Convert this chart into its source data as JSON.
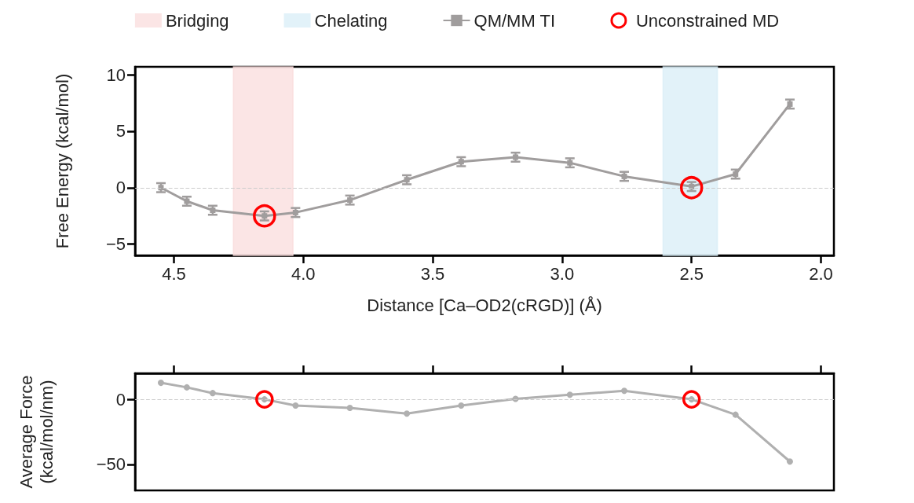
{
  "chart_data": [
    {
      "type": "line",
      "xlabel": "Distance [Ca–OD2(cRGD)] (Å)",
      "ylabel": "Free Energy (kcal/mol)",
      "xlim": [
        4.65,
        1.95
      ],
      "xticks": [
        {
          "value": 4.5,
          "label": "4.5"
        },
        {
          "value": 4,
          "label": "4.0"
        },
        {
          "value": 3.5,
          "label": "3.5"
        },
        {
          "value": 3,
          "label": "3.0"
        },
        {
          "value": 2.5,
          "label": "2.5"
        },
        {
          "value": 2,
          "label": "2.0"
        }
      ],
      "ylim": [
        -6,
        10.7
      ],
      "yticks": [
        {
          "value": -5,
          "label": "−5"
        },
        0,
        5,
        10
      ],
      "grid": false,
      "legend": "top",
      "bands": [
        {
          "axis": "x",
          "from": 4.04,
          "to": 4.27,
          "label": "Bridging",
          "color": "#fadcdc"
        },
        {
          "axis": "x",
          "from": 2.4,
          "to": 2.61,
          "label": "Chelating",
          "color": "#d8edf7"
        }
      ],
      "ref_lines": [
        {
          "axis": "y",
          "value": 0,
          "color": "#cccccc",
          "line_style": "dashed"
        }
      ],
      "series": [
        {
          "name": "QM/MM TI",
          "color": "#a09d9d",
          "marker": "square",
          "x": [
            4.55,
            4.45,
            4.35,
            4.15,
            4.03,
            3.82,
            3.6,
            3.39,
            3.18,
            2.97,
            2.76,
            2.5,
            2.33,
            2.12
          ],
          "values": [
            0,
            -1.2,
            -2.0,
            -2.5,
            -2.2,
            -1.1,
            0.7,
            2.3,
            2.7,
            2.2,
            1.0,
            0.1,
            1.2,
            7.4
          ],
          "errors": [
            0.4,
            0.4,
            0.4,
            0.4,
            0.4,
            0.4,
            0.4,
            0.4,
            0.4,
            0.4,
            0.4,
            0.4,
            0.4,
            0.4
          ]
        },
        {
          "name": "Unconstrained MD",
          "type": "scatter",
          "color": "#ff0000",
          "marker": "circle",
          "x": [
            4.15,
            2.5
          ],
          "values": [
            -2.5,
            0
          ]
        }
      ]
    },
    {
      "type": "line",
      "ylabel": "Average Force\n(kcal/mol/nm)",
      "tick_labels": "y",
      "xlim": [
        4.65,
        1.95
      ],
      "xticks": [
        {
          "value": 4.5,
          "label": null
        },
        {
          "value": 4,
          "label": null
        },
        {
          "value": 3.5,
          "label": null
        },
        {
          "value": 3,
          "label": null
        },
        {
          "value": 2.5,
          "label": null
        },
        {
          "value": 2,
          "label": null
        }
      ],
      "ylim": [
        -70,
        20
      ],
      "yticks": [
        {
          "value": -50,
          "label": "−50"
        },
        0
      ],
      "grid": false,
      "ref_lines": [
        {
          "axis": "y",
          "value": 0,
          "color": "#cccccc",
          "line_style": "dashed"
        }
      ],
      "series": [
        {
          "color": "#b0b0b0",
          "marker": "circle",
          "x": [
            4.55,
            4.45,
            4.35,
            4.15,
            4.03,
            3.82,
            3.6,
            3.39,
            3.18,
            2.97,
            2.76,
            2.5,
            2.33,
            2.12
          ],
          "values": [
            12.7,
            9.2,
            4.8,
            0,
            -4.8,
            -6.6,
            -11,
            -4.8,
            0.4,
            3.5,
            6.6,
            0,
            -11.8,
            -47.8
          ]
        },
        {
          "type": "scatter",
          "color": "#ff0000",
          "marker": "circle",
          "x": [
            4.15,
            2.5
          ],
          "values": [
            0,
            0
          ]
        }
      ]
    }
  ]
}
